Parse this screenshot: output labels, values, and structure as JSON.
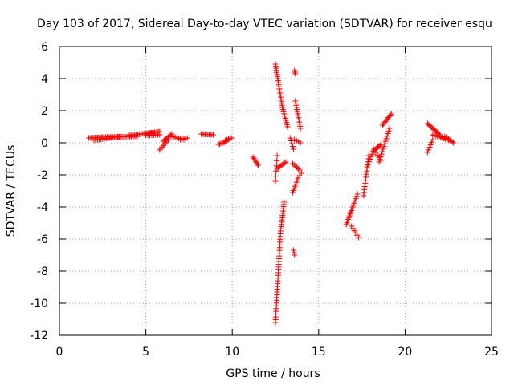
{
  "chart_data": {
    "type": "scatter",
    "title": "Day 103 of 2017, Sidereal Day-to-day VTEC variation (SDTVAR) for receiver esqu",
    "xlabel": "GPS time / hours",
    "ylabel": "SDTVAR / TECUs",
    "xlim": [
      0,
      25
    ],
    "ylim": [
      -12,
      6
    ],
    "xticks": [
      0,
      5,
      10,
      15,
      20,
      25
    ],
    "yticks": [
      -12,
      -10,
      -8,
      -6,
      -4,
      -2,
      0,
      2,
      4,
      6
    ],
    "grid": true,
    "marker": "+",
    "color": "#ff0000",
    "segments": [
      {
        "x0": 1.7,
        "x1": 2.5,
        "y0": 0.3,
        "y1": 0.35,
        "n": 12
      },
      {
        "x0": 2.0,
        "x1": 3.5,
        "y0": 0.15,
        "y1": 0.4,
        "n": 16
      },
      {
        "x0": 2.5,
        "x1": 4.5,
        "y0": 0.35,
        "y1": 0.4,
        "n": 24
      },
      {
        "x0": 4.0,
        "x1": 5.5,
        "y0": 0.45,
        "y1": 0.65,
        "n": 18
      },
      {
        "x0": 5.0,
        "x1": 5.8,
        "y0": 0.55,
        "y1": 0.7,
        "n": 12
      },
      {
        "x0": 5.0,
        "x1": 5.8,
        "y0": 0.45,
        "y1": 0.5,
        "n": 8
      },
      {
        "x0": 5.8,
        "x1": 6.3,
        "y0": -0.45,
        "y1": 0.2,
        "n": 8
      },
      {
        "x0": 6.0,
        "x1": 6.5,
        "y0": 0.1,
        "y1": 0.55,
        "n": 8
      },
      {
        "x0": 6.5,
        "x1": 7.2,
        "y0": 0.4,
        "y1": 0.2,
        "n": 8
      },
      {
        "x0": 7.0,
        "x1": 7.4,
        "y0": 0.2,
        "y1": 0.3,
        "n": 5
      },
      {
        "x0": 8.2,
        "x1": 8.9,
        "y0": 0.55,
        "y1": 0.5,
        "n": 10
      },
      {
        "x0": 9.2,
        "x1": 9.7,
        "y0": -0.1,
        "y1": 0.1,
        "n": 8
      },
      {
        "x0": 9.6,
        "x1": 9.95,
        "y0": 0.15,
        "y1": 0.3,
        "n": 5
      },
      {
        "x0": 11.2,
        "x1": 11.5,
        "y0": -0.9,
        "y1": -1.4,
        "n": 7
      },
      {
        "x0": 12.5,
        "x1": 12.8,
        "y0": -11.2,
        "y1": -5.5,
        "n": 34
      },
      {
        "x0": 12.8,
        "x1": 13.0,
        "y0": -5.5,
        "y1": -3.7,
        "n": 14
      },
      {
        "x0": 12.5,
        "x1": 12.6,
        "y0": -2.4,
        "y1": -0.8,
        "n": 6
      },
      {
        "x0": 12.6,
        "x1": 13.1,
        "y0": -1.6,
        "y1": -1.2,
        "n": 8
      },
      {
        "x0": 12.5,
        "x1": 12.9,
        "y0": 4.9,
        "y1": 2.2,
        "n": 22
      },
      {
        "x0": 12.9,
        "x1": 13.2,
        "y0": 2.2,
        "y1": 1.0,
        "n": 10
      },
      {
        "x0": 13.35,
        "x1": 13.55,
        "y0": 0.3,
        "y1": -0.4,
        "n": 5
      },
      {
        "x0": 13.6,
        "x1": 13.65,
        "y0": 4.5,
        "y1": 4.3,
        "n": 3
      },
      {
        "x0": 13.65,
        "x1": 13.95,
        "y0": 2.6,
        "y1": 0.9,
        "n": 14
      },
      {
        "x0": 13.6,
        "x1": 13.95,
        "y0": 0.2,
        "y1": 0.0,
        "n": 4
      },
      {
        "x0": 13.5,
        "x1": 13.9,
        "y0": -1.3,
        "y1": -1.7,
        "n": 6
      },
      {
        "x0": 13.5,
        "x1": 13.8,
        "y0": -3.1,
        "y1": -2.2,
        "n": 8
      },
      {
        "x0": 13.8,
        "x1": 14.0,
        "y0": -2.2,
        "y1": -1.9,
        "n": 3
      },
      {
        "x0": 13.55,
        "x1": 13.6,
        "y0": -6.7,
        "y1": -7.0,
        "n": 3
      },
      {
        "x0": 16.6,
        "x1": 17.0,
        "y0": -5.1,
        "y1": -3.9,
        "n": 12
      },
      {
        "x0": 17.0,
        "x1": 17.25,
        "y0": -3.9,
        "y1": -3.2,
        "n": 6
      },
      {
        "x0": 16.9,
        "x1": 17.3,
        "y0": -5.2,
        "y1": -5.9,
        "n": 6
      },
      {
        "x0": 17.6,
        "x1": 17.9,
        "y0": -3.3,
        "y1": -0.8,
        "n": 14
      },
      {
        "x0": 17.8,
        "x1": 18.2,
        "y0": -1.5,
        "y1": -0.4,
        "n": 8
      },
      {
        "x0": 18.2,
        "x1": 18.6,
        "y0": -0.5,
        "y1": -0.1,
        "n": 8
      },
      {
        "x0": 18.3,
        "x1": 18.6,
        "y0": -0.6,
        "y1": -1.1,
        "n": 4
      },
      {
        "x0": 18.5,
        "x1": 19.1,
        "y0": -1.2,
        "y1": 0.9,
        "n": 14
      },
      {
        "x0": 18.7,
        "x1": 19.2,
        "y0": 1.1,
        "y1": 1.8,
        "n": 10
      },
      {
        "x0": 21.3,
        "x1": 21.6,
        "y0": -0.6,
        "y1": 0.2,
        "n": 6
      },
      {
        "x0": 21.3,
        "x1": 22.0,
        "y0": 1.2,
        "y1": 0.5,
        "n": 12
      },
      {
        "x0": 21.6,
        "x1": 22.6,
        "y0": 0.5,
        "y1": 0.15,
        "n": 12
      },
      {
        "x0": 22.3,
        "x1": 22.8,
        "y0": 0.4,
        "y1": 0.0,
        "n": 8
      }
    ]
  }
}
